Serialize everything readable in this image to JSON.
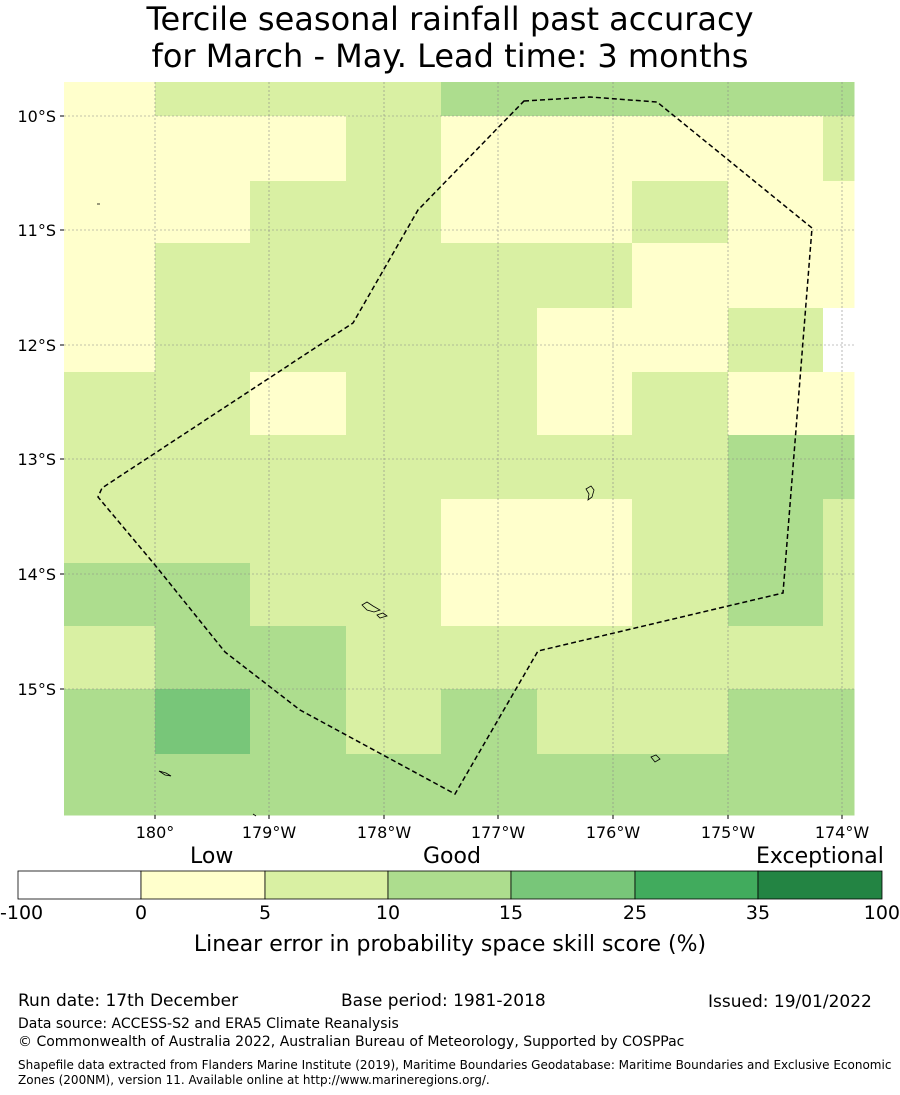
{
  "title_line1": "Tercile seasonal rainfall past accuracy",
  "title_line2": "for March - May. Lead time: 3 months",
  "lat_labels": [
    "10°S",
    "11°S",
    "12°S",
    "13°S",
    "14°S",
    "15°S"
  ],
  "lon_labels": [
    "180°",
    "179°W",
    "178°W",
    "177°W",
    "176°W",
    "175°W",
    "174°W"
  ],
  "grid_values": [
    [
      3,
      8,
      8,
      8,
      12,
      12,
      12,
      12,
      12
    ],
    [
      3,
      3,
      3,
      8,
      3,
      3,
      3,
      3,
      8
    ],
    [
      3,
      3,
      8,
      8,
      3,
      3,
      8,
      3,
      3
    ],
    [
      3,
      8,
      8,
      8,
      8,
      8,
      3,
      3,
      3
    ],
    [
      3,
      8,
      8,
      8,
      8,
      3,
      3,
      8,
      -1
    ],
    [
      8,
      8,
      3,
      8,
      8,
      3,
      8,
      3,
      3
    ],
    [
      8,
      8,
      8,
      8,
      8,
      8,
      8,
      12,
      12
    ],
    [
      8,
      8,
      8,
      8,
      3,
      3,
      8,
      12,
      8
    ],
    [
      12,
      12,
      8,
      8,
      3,
      3,
      8,
      12,
      8
    ],
    [
      8,
      12,
      12,
      8,
      8,
      8,
      8,
      8,
      8
    ],
    [
      12,
      20,
      12,
      8,
      12,
      8,
      8,
      12,
      12
    ],
    [
      12,
      12,
      12,
      12,
      12,
      12,
      12,
      12,
      12
    ]
  ],
  "colorbar": {
    "category_labels": [
      "Low",
      "Good",
      "Exceptional"
    ],
    "tick_labels": [
      "-100",
      "0",
      "5",
      "10",
      "15",
      "25",
      "35",
      "100"
    ],
    "colors": [
      "#ffffff",
      "#ffffcc",
      "#d9f0a3",
      "#addd8e",
      "#78c679",
      "#41ab5d",
      "#238443"
    ],
    "axis_label": "Linear error in probability space skill score (%)"
  },
  "footer": {
    "run_date": "Run date: 17th December",
    "base_period": "Base period: 1981-2018",
    "issued": "Issued: 19/01/2022",
    "data_source": "Data source: ACCESS-S2 and ERA5 Climate Reanalysis",
    "copyright": "© Commonwealth of Australia 2022, Australian Bureau of Meteorology, Supported by COSPPac",
    "shapefile": "Shapefile data extracted from Flanders Marine Institute (2019), Maritime Boundaries Geodatabase: Maritime Boundaries and Exclusive Economic Zones (200NM), version 11. Available online at http://www.marineregions.org/."
  }
}
